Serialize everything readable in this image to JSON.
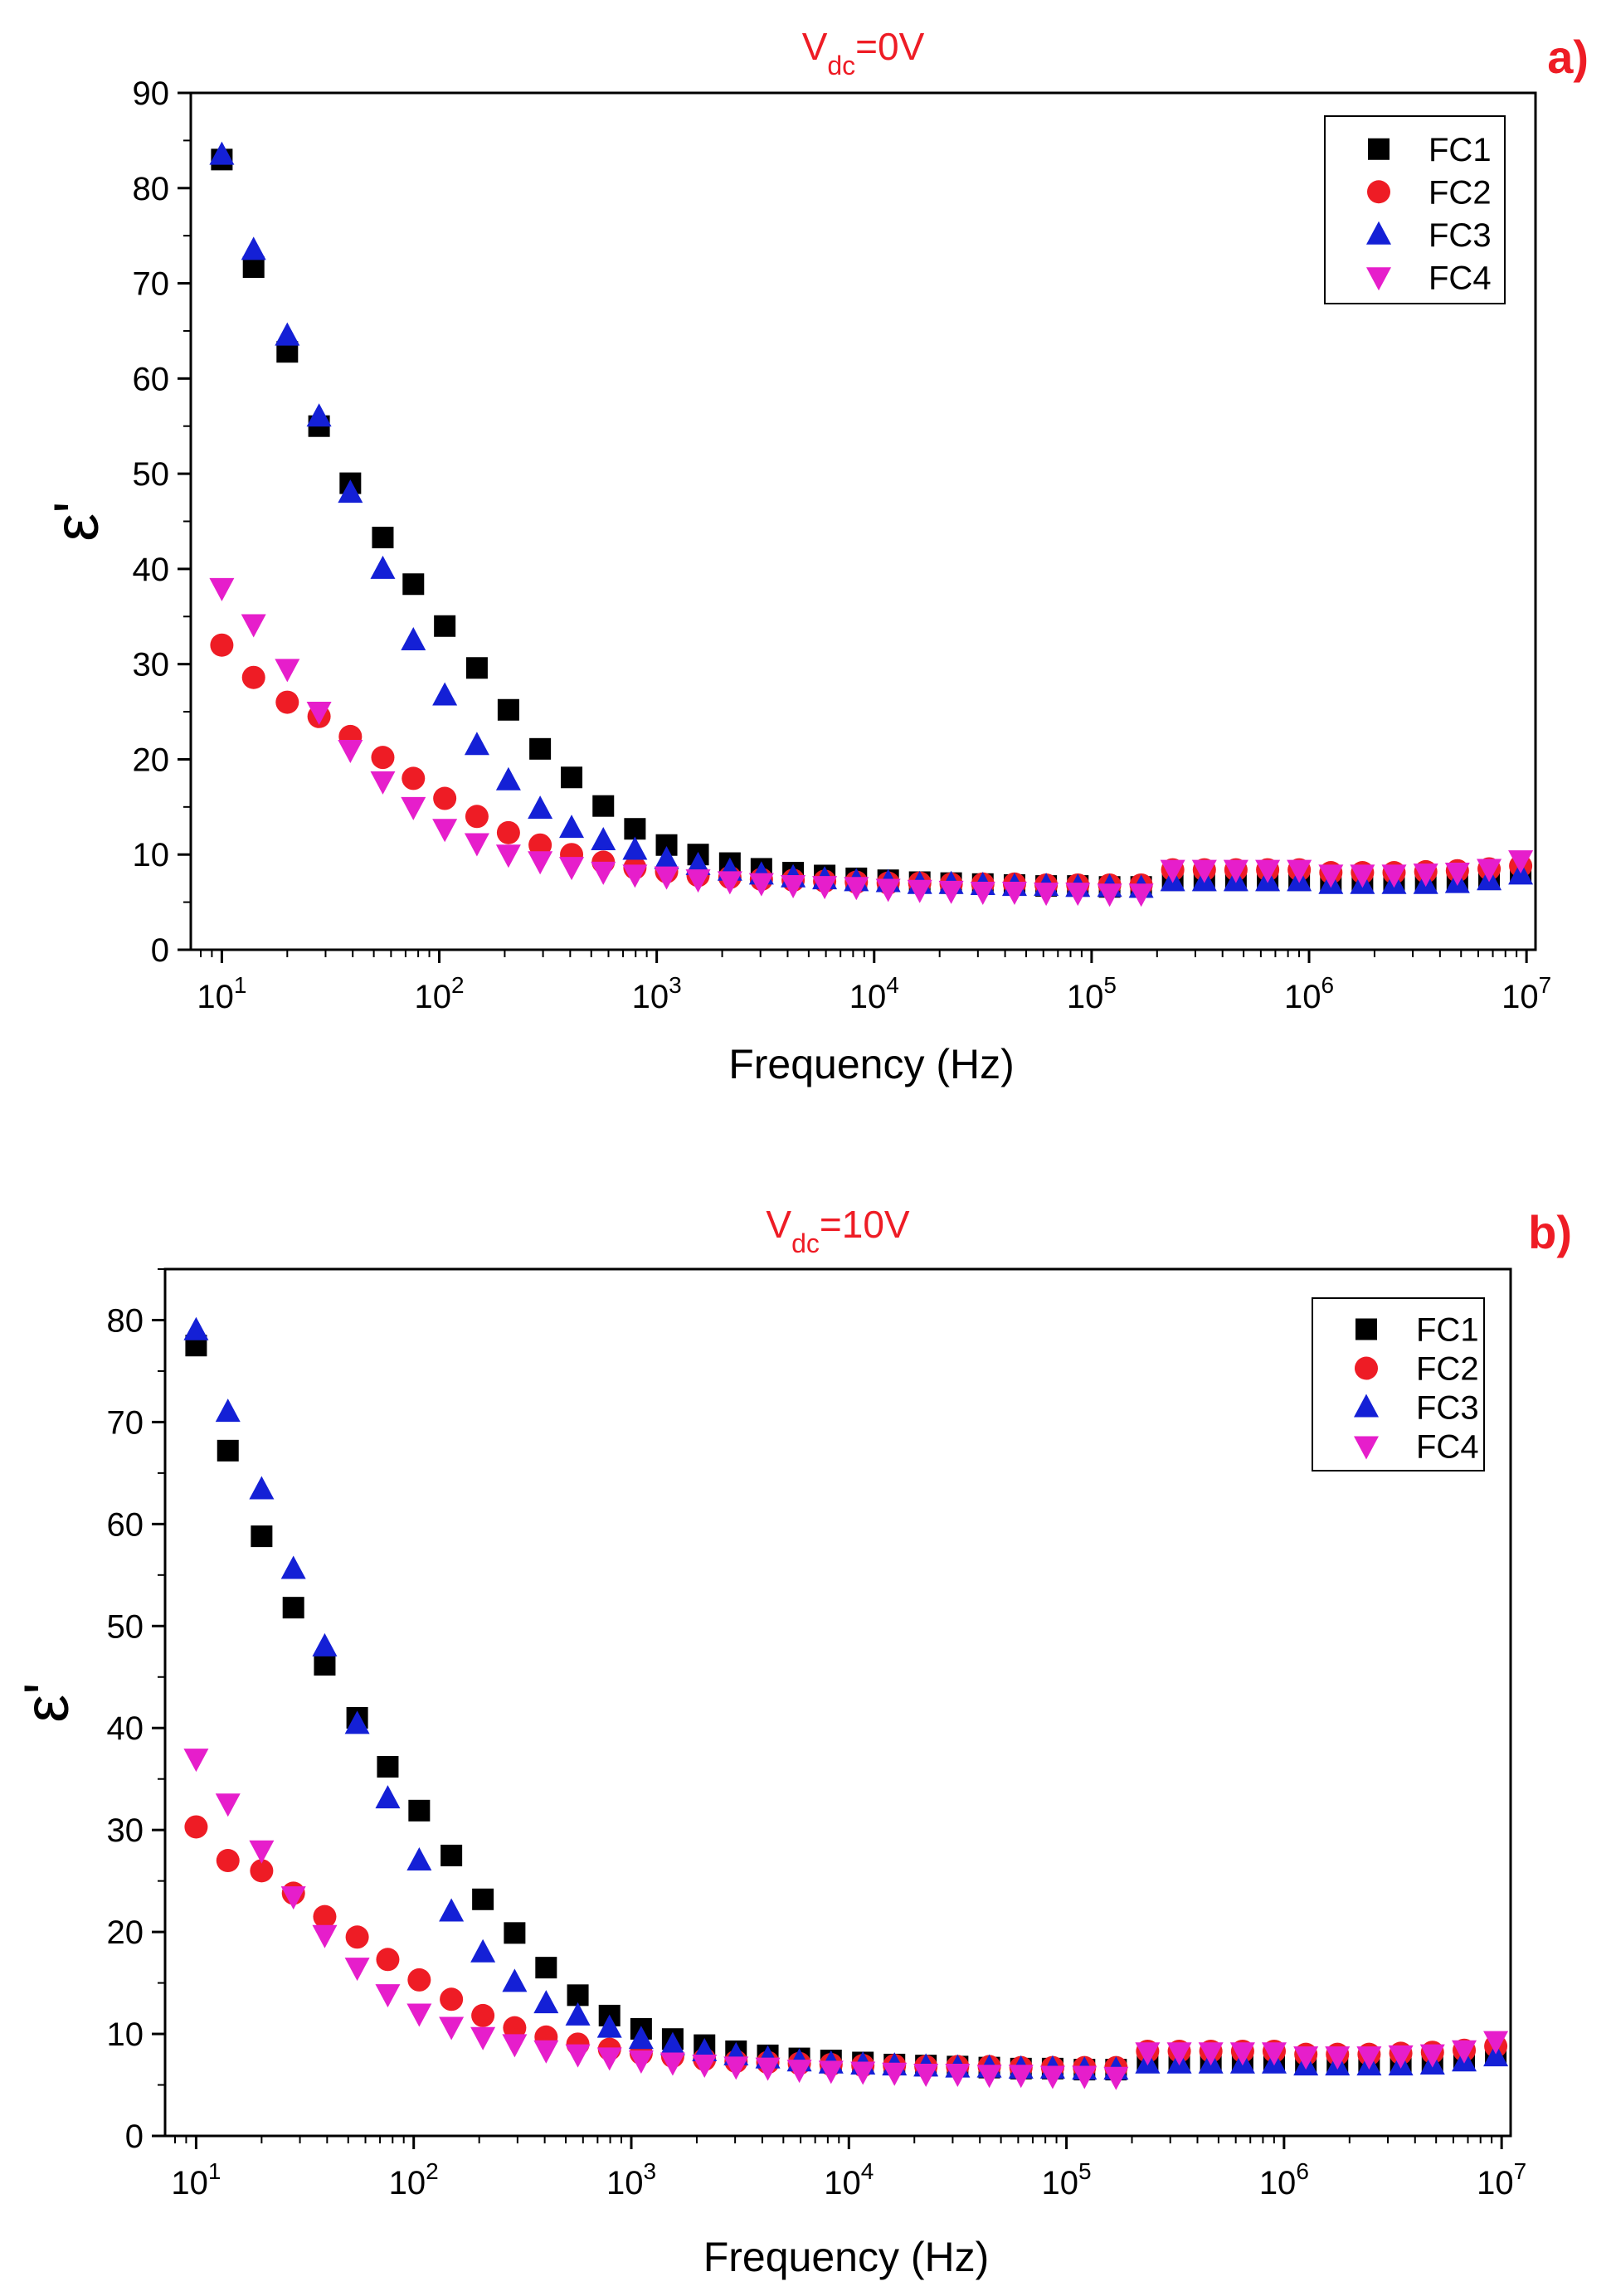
{
  "chart_data": [
    {
      "type": "scatter",
      "title_base": "V",
      "title_sub": "dc",
      "title_rest": "=0V",
      "panel_label": "a)",
      "xlabel": "Frequency (Hz)",
      "ylabel": "ε'",
      "x_scale": "log",
      "x_ticks": [
        "10^1",
        "10^2",
        "10^3",
        "10^4",
        "10^5",
        "10^6",
        "10^7"
      ],
      "xlim": [
        7.2,
        11000000
      ],
      "ylim": [
        0,
        90
      ],
      "y_ticks": [
        0,
        10,
        20,
        30,
        40,
        50,
        60,
        70,
        80,
        90
      ],
      "y_tick_labels": [
        "0",
        "10",
        "20",
        "30",
        "40",
        "50",
        "60",
        "70",
        "80",
        "90"
      ],
      "grid": false,
      "legend_position": "top-right",
      "x": [
        10,
        14,
        20,
        28,
        39,
        55,
        76,
        106,
        149,
        208,
        291,
        406,
        568,
        794,
        1110,
        1550,
        2170,
        3030,
        4240,
        5920,
        8280,
        11600,
        16200,
        22600,
        31600,
        44200,
        61800,
        86400,
        121000,
        169000,
        236000,
        330000,
        461000,
        645000,
        901000,
        1260000,
        1760000,
        2460000,
        3440000,
        4810000,
        6730000,
        9400000
      ],
      "series": [
        {
          "name": "FC1",
          "marker": "square",
          "color": "#000000",
          "values": [
            83,
            71.7,
            62.8,
            55,
            49,
            43.3,
            38.4,
            34,
            29.6,
            25.2,
            21.1,
            18.1,
            15.1,
            12.7,
            11,
            10,
            9.1,
            8.5,
            8.1,
            7.8,
            7.5,
            7.3,
            7.1,
            7,
            6.9,
            6.8,
            6.7,
            6.7,
            6.6,
            6.6,
            7.3,
            7.3,
            7.3,
            7.3,
            7.3,
            7.2,
            7.2,
            7.2,
            7.2,
            7.3,
            7.4,
            8.1
          ]
        },
        {
          "name": "FC2",
          "marker": "circle",
          "color": "#ee1c25",
          "values": [
            32,
            28.6,
            26,
            24.5,
            22.4,
            20.2,
            18,
            15.9,
            14,
            12.3,
            11,
            10,
            9.2,
            8.6,
            8.2,
            7.8,
            7.6,
            7.4,
            7.3,
            7.2,
            7.1,
            7,
            7,
            6.9,
            6.9,
            6.9,
            6.8,
            6.8,
            6.8,
            6.8,
            8.4,
            8.4,
            8.4,
            8.4,
            8.4,
            8.1,
            8.1,
            8.1,
            8.2,
            8.3,
            8.5,
            8.8
          ]
        },
        {
          "name": "FC3",
          "marker": "triangle-up",
          "color": "#1420d6",
          "values": [
            83.5,
            73.5,
            64.5,
            56,
            48,
            40,
            32.5,
            26.7,
            21.5,
            17.8,
            14.8,
            12.8,
            11.5,
            10.5,
            9.5,
            8.9,
            8.3,
            7.9,
            7.6,
            7.4,
            7.2,
            7.1,
            6.9,
            6.9,
            6.8,
            6.7,
            6.7,
            6.6,
            6.6,
            6.5,
            7.2,
            7.2,
            7.2,
            7.2,
            7.2,
            6.9,
            6.9,
            6.9,
            6.9,
            7,
            7.3,
            7.9
          ]
        },
        {
          "name": "FC4",
          "marker": "triangle-down",
          "color": "#e61ecb",
          "values": [
            38,
            34.2,
            29.5,
            25,
            21,
            17.7,
            15,
            12.7,
            11.2,
            10,
            9.3,
            8.7,
            8.2,
            7.9,
            7.7,
            7.4,
            7.2,
            7,
            6.8,
            6.7,
            6.6,
            6.4,
            6.3,
            6.2,
            6.1,
            6.1,
            6,
            6,
            5.9,
            5.9,
            8.4,
            8.4,
            8.4,
            8.4,
            8.4,
            7.9,
            7.9,
            7.9,
            8,
            8.1,
            8.5,
            9.4
          ]
        }
      ]
    },
    {
      "type": "scatter",
      "title_base": "V",
      "title_sub": "dc",
      "title_rest": "=10V",
      "panel_label": "b)",
      "xlabel": "Frequency (Hz)",
      "ylabel": "ε'",
      "x_scale": "log",
      "x_ticks": [
        "10^1",
        "10^2",
        "10^3",
        "10^4",
        "10^5",
        "10^6",
        "10^7"
      ],
      "xlim": [
        7.2,
        11000000
      ],
      "ylim": [
        0,
        85
      ],
      "y_ticks": [
        0,
        10,
        20,
        30,
        40,
        50,
        60,
        70,
        80
      ],
      "y_tick_labels": [
        "0",
        "10",
        "20",
        "30",
        "40",
        "50",
        "60",
        "70",
        "80"
      ],
      "grid": false,
      "legend_position": "top-right",
      "x": [
        10,
        14,
        20,
        28,
        39,
        55,
        76,
        106,
        149,
        208,
        291,
        406,
        568,
        794,
        1110,
        1550,
        2170,
        3030,
        4240,
        5920,
        8280,
        11600,
        16200,
        22600,
        31600,
        44200,
        61800,
        86400,
        121000,
        169000,
        236000,
        330000,
        461000,
        645000,
        901000,
        1260000,
        1760000,
        2460000,
        3440000,
        4810000,
        6730000,
        9400000
      ],
      "series": [
        {
          "name": "FC1",
          "marker": "square",
          "color": "#000000",
          "values": [
            77.5,
            67.2,
            58.8,
            51.8,
            46.2,
            41,
            36.2,
            31.9,
            27.5,
            23.2,
            19.9,
            16.5,
            13.8,
            11.8,
            10.5,
            9.5,
            8.9,
            8.3,
            7.9,
            7.6,
            7.4,
            7.2,
            7,
            6.9,
            6.8,
            6.7,
            6.6,
            6.6,
            6.5,
            6.5,
            7.3,
            7.3,
            7.3,
            7.3,
            7.3,
            7.1,
            7.1,
            7.1,
            7.1,
            7.2,
            7.4,
            8
          ]
        },
        {
          "name": "FC2",
          "marker": "circle",
          "color": "#ee1c25",
          "values": [
            30.3,
            27,
            26,
            23.8,
            21.5,
            19.5,
            17.3,
            15.3,
            13.4,
            11.8,
            10.6,
            9.7,
            9,
            8.5,
            8.1,
            7.8,
            7.5,
            7.3,
            7.2,
            7.1,
            7,
            6.9,
            6.9,
            6.8,
            6.8,
            6.8,
            6.7,
            6.7,
            6.7,
            6.7,
            8.3,
            8.3,
            8.3,
            8.3,
            8.3,
            8,
            8,
            8,
            8.1,
            8.2,
            8.4,
            8.8
          ]
        },
        {
          "name": "FC3",
          "marker": "triangle-up",
          "color": "#1420d6",
          "values": [
            79,
            71,
            63.4,
            55.6,
            48,
            40.4,
            33.1,
            27,
            22,
            18,
            15.1,
            13,
            11.8,
            10.6,
            9.5,
            8.9,
            8.3,
            7.9,
            7.6,
            7.3,
            7.1,
            7,
            6.9,
            6.8,
            6.7,
            6.7,
            6.6,
            6.6,
            6.5,
            6.5,
            7.1,
            7.1,
            7.1,
            7.1,
            7.1,
            6.9,
            6.9,
            6.9,
            6.9,
            7,
            7.3,
            7.8
          ]
        },
        {
          "name": "FC4",
          "marker": "triangle-down",
          "color": "#e61ecb",
          "values": [
            37,
            32.6,
            28,
            23.5,
            19.7,
            16.5,
            13.9,
            12,
            10.7,
            9.7,
            9,
            8.4,
            8,
            7.7,
            7.4,
            7.2,
            7,
            6.8,
            6.7,
            6.5,
            6.4,
            6.3,
            6.2,
            6.1,
            6.1,
            6,
            6,
            5.9,
            5.9,
            5.8,
            8.2,
            8.2,
            8.2,
            8.2,
            8.2,
            7.8,
            7.8,
            7.8,
            7.9,
            8,
            8.4,
            9.3
          ]
        }
      ]
    }
  ]
}
